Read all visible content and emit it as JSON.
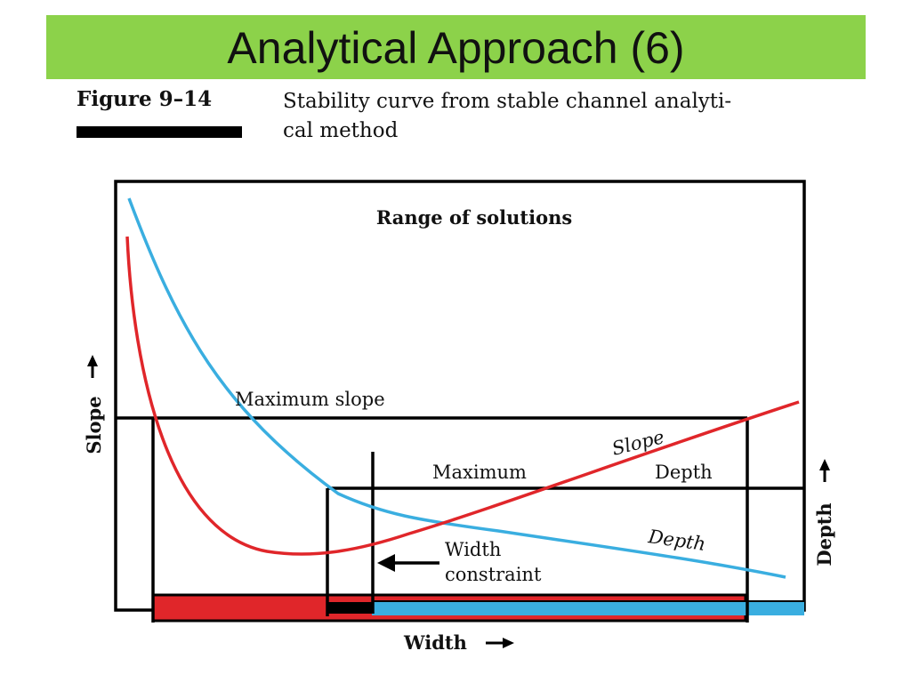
{
  "slide": {
    "title": "Analytical Approach (6)",
    "accent_color": "#8cd24a"
  },
  "figure": {
    "label": "Figure 9–14",
    "caption_line1": "Stability curve from stable channel analyti-",
    "caption_line2": "cal method"
  },
  "diagram": {
    "heading": "Range of solutions",
    "y_axis_left": "Slope",
    "y_axis_right": "Depth",
    "x_axis": "Width",
    "max_slope_label": "Maximum slope",
    "max_depth_label_1": "Maximum",
    "max_depth_label_2": "Depth",
    "slope_curve_label": "Slope",
    "depth_curve_label": "Depth",
    "constraint_label_1": "Width",
    "constraint_label_2": "constraint",
    "colors": {
      "slope_curve": "#e0262a",
      "depth_curve": "#3aaee0",
      "frame": "#000000"
    }
  }
}
